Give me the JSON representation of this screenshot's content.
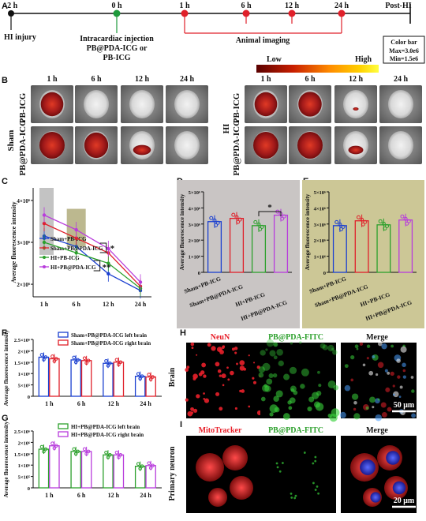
{
  "panels": [
    "A",
    "B",
    "C",
    "D",
    "E",
    "F",
    "G",
    "H",
    "I"
  ],
  "timeline": {
    "points": [
      "-2 h",
      "0 h",
      "1 h",
      "6 h",
      "12 h",
      "24 h",
      "Post-HI"
    ],
    "hi_injury": "HI injury",
    "injection": [
      "Intracardiac injection",
      "PB@PDA-ICG or",
      "PB-ICG"
    ],
    "animal_imaging": "Animal imaging"
  },
  "colorbar": {
    "title": "Color bar",
    "max": "Max=3.0e6",
    "min": "Min=1.5e6",
    "low": "Low",
    "high": "High",
    "colors": [
      "#5a0000",
      "#c81e00",
      "#ff8c00",
      "#ffd200",
      "#ffff40"
    ]
  },
  "imaging": {
    "times": [
      "1 h",
      "6 h",
      "12 h",
      "24 h"
    ],
    "sham_group": "Sham",
    "hi_group": "HI",
    "row_labels": [
      "PB-ICG",
      "PB@PDA-ICG"
    ]
  },
  "chart_data": [
    {
      "panel": "C",
      "type": "line",
      "ylabel": "Average fluorescence intensity",
      "categories": [
        "1 h",
        "6 h",
        "12 h",
        "24 h"
      ],
      "yticks": [
        "2×10⁶",
        "3×10⁶",
        "4×10⁶"
      ],
      "ylim": [
        1.7,
        4.3
      ],
      "series": [
        {
          "name": "Sham+PB-ICG",
          "color": "#1a3fd0",
          "values": [
            3.15,
            2.9,
            2.25,
            1.85
          ]
        },
        {
          "name": "Sham+PB@PDA-ICG",
          "color": "#e0202a",
          "values": [
            3.45,
            3.1,
            2.75,
            1.95
          ]
        },
        {
          "name": "HI+PB-ICG",
          "color": "#2ca02c",
          "values": [
            3.0,
            2.75,
            2.5,
            1.9
          ]
        },
        {
          "name": "HI+PB@PDA-ICG",
          "color": "#b83cdc",
          "values": [
            3.65,
            3.3,
            2.85,
            2.05
          ]
        }
      ],
      "annotations": [
        "*",
        "**"
      ]
    },
    {
      "panel": "D",
      "type": "bar",
      "ylabel": "Average fluorescence intensity",
      "categories": [
        "Sham+PB-ICG",
        "Sham+PB@PDA-ICG",
        "HI+PB-ICG",
        "HI+PB@PDA-ICG"
      ],
      "yticks": [
        "0",
        "1×10⁶",
        "2×10⁶",
        "3×10⁶",
        "4×10⁶",
        "5×10⁶"
      ],
      "ylim": [
        0,
        5
      ],
      "values": [
        3.15,
        3.35,
        2.9,
        3.55
      ],
      "colors": [
        "#1a3fd0",
        "#e0202a",
        "#2ca02c",
        "#b83cdc"
      ],
      "annotations": [
        "*"
      ]
    },
    {
      "panel": "E",
      "type": "bar",
      "ylabel": "Average fluorescence intensity",
      "categories": [
        "Sham+PB-ICG",
        "Sham+PB@PDA-ICG",
        "HI+PB-ICG",
        "HI+PB@PDA-ICG"
      ],
      "yticks": [
        "0",
        "1×10⁶",
        "2×10⁶",
        "3×10⁶",
        "4×10⁶",
        "5×10⁶"
      ],
      "ylim": [
        0,
        5
      ],
      "values": [
        2.9,
        3.2,
        2.95,
        3.25
      ],
      "colors": [
        "#1a3fd0",
        "#e0202a",
        "#2ca02c",
        "#b83cdc"
      ]
    },
    {
      "panel": "F",
      "type": "bar",
      "ylabel": "Average fluorescence intensity",
      "categories": [
        "1 h",
        "6 h",
        "12 h",
        "24 h"
      ],
      "yticks": [
        "0",
        "5×10⁵",
        "1×10⁶",
        "1.5×10⁶",
        "2×10⁶",
        "2.5×10⁶"
      ],
      "ylim": [
        0,
        2.5
      ],
      "series": [
        {
          "name": "Sham+PB@PDA-ICG left brain",
          "color": "#1a3fd0",
          "values": [
            1.72,
            1.6,
            1.45,
            0.88
          ]
        },
        {
          "name": "Sham+PB@PDA-ICG right brain",
          "color": "#e0202a",
          "values": [
            1.65,
            1.57,
            1.5,
            0.85
          ]
        }
      ]
    },
    {
      "panel": "G",
      "type": "bar",
      "ylabel": "Average fluorescence intensity",
      "categories": [
        "1 h",
        "6 h",
        "12 h",
        "24 h"
      ],
      "yticks": [
        "0",
        "5×10⁵",
        "1×10⁶",
        "1.5×10⁶",
        "2×10⁶",
        "2.5×10⁶"
      ],
      "ylim": [
        0,
        2.5
      ],
      "series": [
        {
          "name": "HI+PB@PDA-ICG left brain",
          "color": "#2ca02c",
          "values": [
            1.7,
            1.6,
            1.45,
            0.95
          ]
        },
        {
          "name": "HI+PB@PDA-ICG right brain",
          "color": "#b83cdc",
          "values": [
            1.85,
            1.6,
            1.45,
            0.98
          ]
        }
      ]
    }
  ],
  "microscopy": {
    "h_titles": [
      "NeuN",
      "PB@PDA-FITC",
      "Merge"
    ],
    "h_side": "Brain",
    "h_scale": "50 μm",
    "i_titles": [
      "MitoTracker",
      "PB@PDA-FITC",
      "Merge"
    ],
    "i_side": "Primary neuron",
    "i_scale": "20 μm",
    "title_colors": [
      "#e8202a",
      "#2ca02c",
      "#111111"
    ]
  }
}
